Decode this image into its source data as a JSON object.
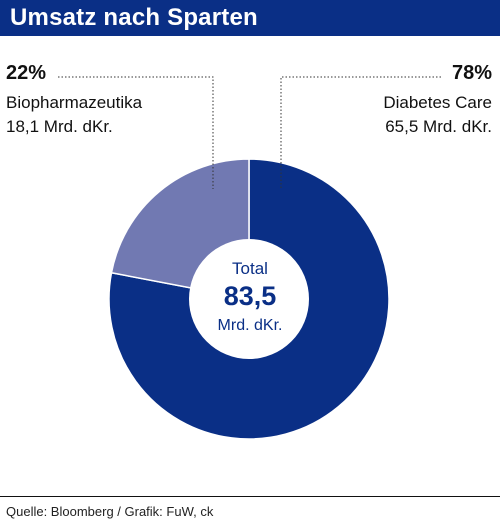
{
  "header": {
    "title": "Umsatz nach Sparten"
  },
  "chart_data": {
    "type": "pie",
    "title": "Umsatz nach Sparten",
    "slices": [
      {
        "label": "Diabetes Care",
        "percent": 78,
        "percent_label": "78%",
        "value": 65.5,
        "value_label": "65,5 Mrd. dKr.",
        "color": "#0a2f86"
      },
      {
        "label": "Biopharmazeutika",
        "percent": 22,
        "percent_label": "22%",
        "value": 18.1,
        "value_label": "18,1 Mrd. dKr.",
        "color": "#7179b2"
      }
    ],
    "center": {
      "total_label": "Total",
      "total_value": "83,5",
      "unit": "Mrd. dKr."
    }
  },
  "footer": {
    "source": "Quelle: Bloomberg / Grafik: FuW, ck"
  }
}
